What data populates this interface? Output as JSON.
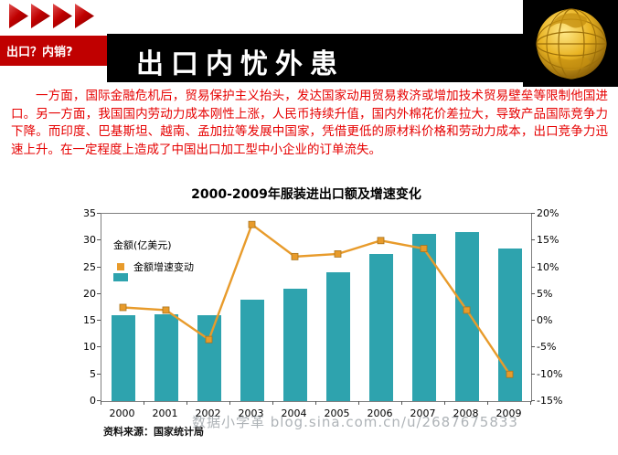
{
  "slide": {
    "tag_label": "出口？内销?",
    "title": "出口内忧外患",
    "body_text": "一方面，国际金融危机后，贸易保护主义抬头，发达国家动用贸易救济或增加技术贸易壁垒等限制他国进口。另一方面，我国国内劳动力成本刚性上涨，人民币持续升值，国内外棉花价差拉大，导致产品国际竞争力下降。而印度、巴基斯坦、越南、孟加拉等发展中国家，凭借更低的原材料价格和劳动力成本，出口竞争力迅速上升。在一定程度上造成了中国出口加工型中小企业的订单流失。",
    "source_note": "资料来源：国家统计局",
    "watermark": "数据小学革 blog.sina.com.cn/u/2687675833"
  },
  "colors": {
    "bar": "#2ea3ae",
    "line": "#e89b2b",
    "line_marker_border": "#a9731c",
    "accent_red": "#c00000",
    "body_red": "#e60000",
    "header_black": "#000000"
  },
  "chart_data": {
    "type": "bar",
    "subtype": "bar+line combo, dual axis",
    "title": "2000-2009年服装进出口额及增速变化",
    "categories": [
      "2000",
      "2001",
      "2002",
      "2003",
      "2004",
      "2005",
      "2006",
      "2007",
      "2008",
      "2009"
    ],
    "series": [
      {
        "name": "金额(亿美元)",
        "type": "bar",
        "axis": "left",
        "values": [
          16,
          16.3,
          16,
          19,
          21,
          24,
          27.5,
          31.2,
          31.6,
          28.5
        ]
      },
      {
        "name": "金额增速变动",
        "type": "line",
        "axis": "right",
        "values": [
          2.5,
          2,
          -3.5,
          18,
          12,
          12.5,
          15,
          13.5,
          2,
          -10
        ]
      }
    ],
    "left_axis": {
      "min": 0,
      "max": 35,
      "step": 5
    },
    "right_axis": {
      "min": -15,
      "max": 20,
      "step": 5,
      "format": "percent"
    },
    "grid": false,
    "legend_position": "inside-top-left"
  }
}
